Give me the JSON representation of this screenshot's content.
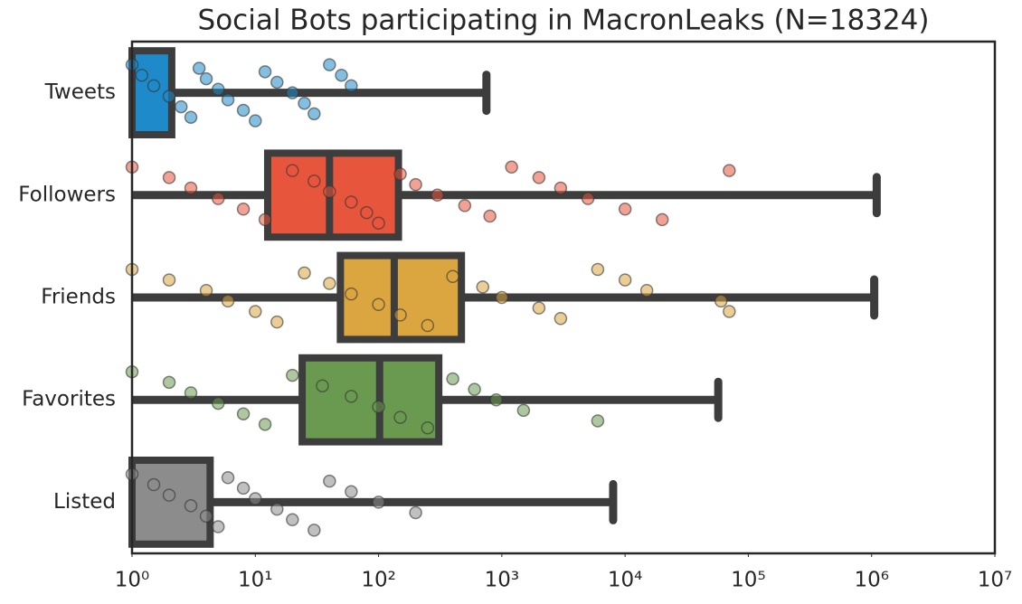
{
  "chart_data": {
    "type": "box",
    "title": "Social Bots participating in MacronLeaks (N=18324)",
    "log_x": true,
    "xlim": [
      1,
      10000000
    ],
    "xticks": [
      {
        "value": 1,
        "label": "10⁰"
      },
      {
        "value": 10,
        "label": "10¹"
      },
      {
        "value": 100,
        "label": "10²"
      },
      {
        "value": 1000,
        "label": "10³"
      },
      {
        "value": 10000,
        "label": "10⁴"
      },
      {
        "value": 100000,
        "label": "10⁵"
      },
      {
        "value": 1000000,
        "label": "10⁶"
      },
      {
        "value": 10000000,
        "label": "10⁷"
      }
    ],
    "categories": [
      "Tweets",
      "Followers",
      "Friends",
      "Favorites",
      "Listed"
    ],
    "boxes": [
      {
        "color": "#1f8ac9",
        "whislo": 1,
        "q1": 1,
        "median": 1,
        "q3": 2.1,
        "whishi": 750,
        "points": [
          1,
          1.2,
          1.5,
          2,
          2.5,
          3,
          3.5,
          4,
          5,
          6,
          8,
          10,
          12,
          15,
          20,
          25,
          30,
          40,
          50,
          60
        ]
      },
      {
        "color": "#e8553d",
        "whislo": 1,
        "q1": 12.6,
        "median": 40,
        "q3": 145,
        "whishi": 1100000,
        "points": [
          1,
          2,
          3,
          5,
          8,
          12,
          20,
          30,
          40,
          60,
          80,
          100,
          150,
          200,
          300,
          500,
          800,
          1200,
          2000,
          3000,
          5000,
          10000,
          20000,
          70000
        ]
      },
      {
        "color": "#dba540",
        "whislo": 1,
        "q1": 49,
        "median": 134,
        "q3": 470,
        "whishi": 1050000,
        "points": [
          1,
          2,
          4,
          6,
          10,
          15,
          25,
          40,
          60,
          100,
          150,
          250,
          400,
          700,
          1000,
          2000,
          3000,
          6000,
          10000,
          15000,
          60000,
          70000
        ]
      },
      {
        "color": "#6a9a50",
        "whislo": 1,
        "q1": 24,
        "median": 102,
        "q3": 308,
        "whishi": 57000,
        "points": [
          1,
          2,
          3,
          5,
          8,
          12,
          20,
          35,
          60,
          100,
          150,
          250,
          400,
          600,
          900,
          1500,
          6000
        ]
      },
      {
        "color": "#8c8c8c",
        "whislo": 1,
        "q1": 1,
        "median": 1,
        "q3": 4.3,
        "whishi": 8000,
        "points": [
          1,
          1.5,
          2,
          3,
          4,
          5,
          6,
          8,
          10,
          15,
          20,
          30,
          40,
          60,
          100,
          200
        ]
      }
    ]
  }
}
